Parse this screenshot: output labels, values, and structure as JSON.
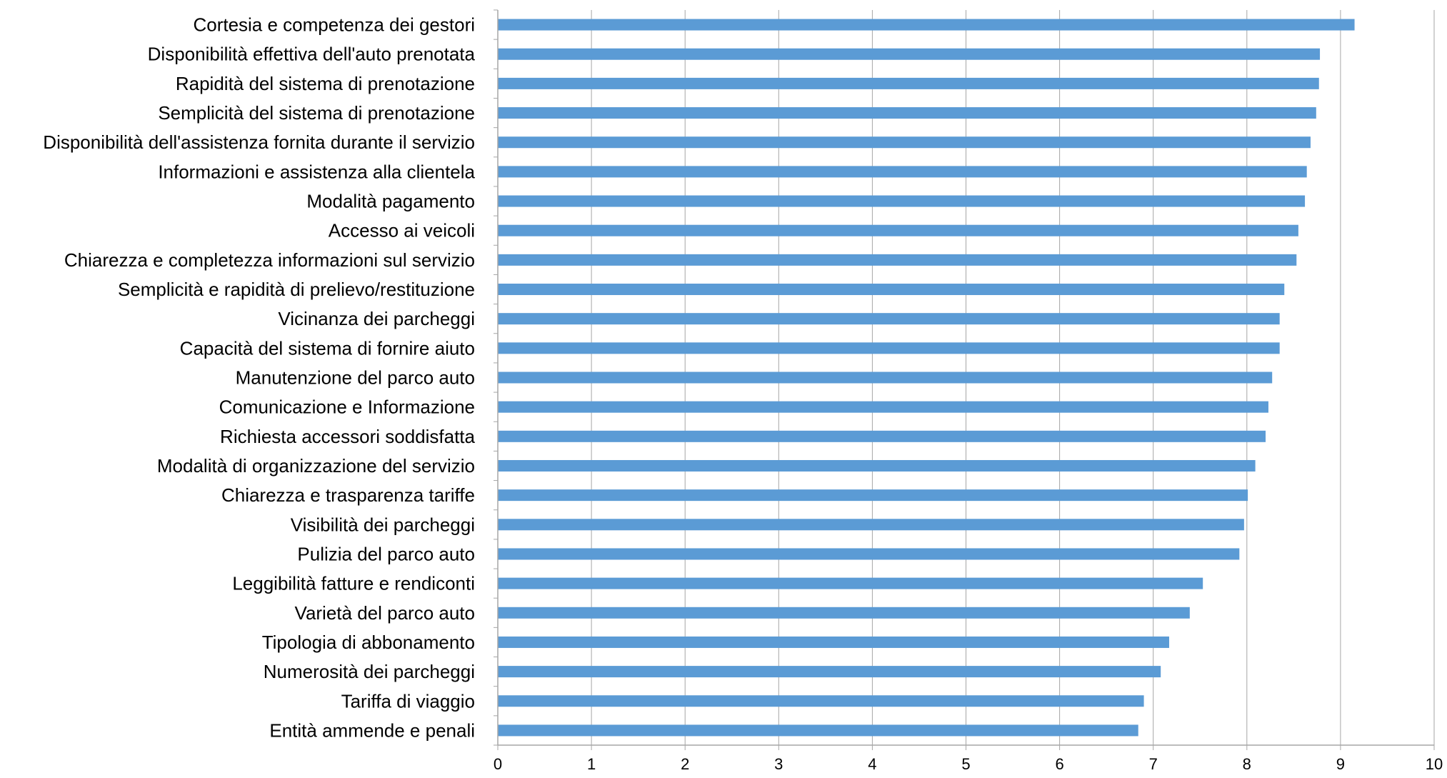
{
  "chart_data": {
    "type": "bar",
    "orientation": "horizontal",
    "categories": [
      "Cortesia e competenza dei gestori",
      "Disponibilità effettiva dell'auto prenotata",
      "Rapidità del sistema di prenotazione",
      "Semplicità del sistema di prenotazione",
      "Disponibilità dell'assistenza fornita durante il servizio",
      "Informazioni e assistenza alla clientela",
      "Modalità pagamento",
      "Accesso ai veicoli",
      "Chiarezza e completezza informazioni sul servizio",
      "Semplicità e rapidità di prelievo/restituzione",
      "Vicinanza dei parcheggi",
      "Capacità del sistema di fornire aiuto",
      "Manutenzione del parco auto",
      "Comunicazione e Informazione",
      "Richiesta accessori soddisfatta",
      "Modalità di organizzazione del servizio",
      "Chiarezza e trasparenza tariffe",
      "Visibilità dei parcheggi",
      "Pulizia del parco auto",
      "Leggibilità fatture e rendiconti",
      "Varietà del parco auto",
      "Tipologia di abbonamento",
      "Numerosità dei parcheggi",
      "Tariffa di viaggio",
      "Entità ammende e penali"
    ],
    "values": [
      9.15,
      8.78,
      8.77,
      8.74,
      8.68,
      8.64,
      8.62,
      8.55,
      8.53,
      8.4,
      8.35,
      8.35,
      8.27,
      8.23,
      8.2,
      8.09,
      8.01,
      7.97,
      7.92,
      7.53,
      7.39,
      7.17,
      7.08,
      6.9,
      6.84
    ],
    "xlim": [
      0,
      10
    ],
    "xticks": [
      "0",
      "1",
      "2",
      "3",
      "4",
      "5",
      "6",
      "7",
      "8",
      "9",
      "10"
    ],
    "grid": true,
    "bar_color": "#5b9bd5",
    "grid_color": "#a6a6a6",
    "axis_color": "#a6a6a6",
    "title": "",
    "xlabel": "",
    "ylabel": ""
  }
}
